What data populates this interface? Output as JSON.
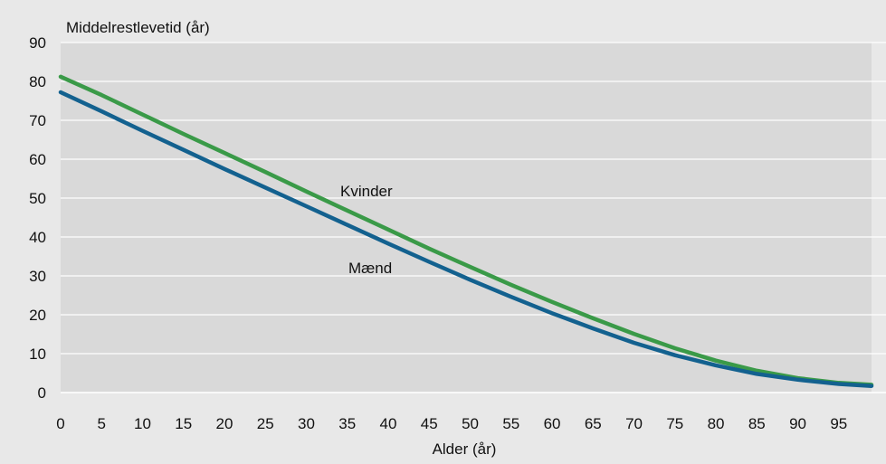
{
  "chart_data": {
    "type": "line",
    "ylabel": "Middelrestlevetid (år)",
    "xlabel": "Alder (år)",
    "xlim": [
      0,
      99
    ],
    "ylim": [
      0,
      90
    ],
    "x_ticks": [
      0,
      5,
      10,
      15,
      20,
      25,
      30,
      35,
      40,
      45,
      50,
      55,
      60,
      65,
      70,
      75,
      80,
      85,
      90,
      95
    ],
    "y_ticks": [
      0,
      10,
      20,
      30,
      40,
      50,
      60,
      70,
      80,
      90
    ],
    "grid": "horizontal",
    "colors": {
      "background": "#e8e8e8",
      "plot_background": "#d9d9d9",
      "grid": "#ffffff"
    },
    "x": [
      0,
      5,
      10,
      15,
      20,
      25,
      30,
      35,
      40,
      45,
      50,
      55,
      60,
      65,
      70,
      75,
      80,
      85,
      90,
      95,
      99
    ],
    "series": [
      {
        "name": "Kvinder",
        "color": "#3a9a48",
        "values": [
          81.2,
          76.5,
          71.5,
          66.5,
          61.6,
          56.7,
          51.7,
          46.8,
          41.9,
          37.0,
          32.3,
          27.7,
          23.3,
          19.1,
          15.1,
          11.4,
          8.2,
          5.6,
          3.7,
          2.5,
          2.0
        ]
      },
      {
        "name": "Mænd",
        "color": "#13618f",
        "values": [
          77.2,
          72.3,
          67.3,
          62.4,
          57.5,
          52.7,
          47.9,
          43.1,
          38.3,
          33.6,
          29.0,
          24.6,
          20.4,
          16.5,
          12.8,
          9.6,
          7.0,
          4.8,
          3.3,
          2.2,
          1.7
        ]
      }
    ]
  }
}
